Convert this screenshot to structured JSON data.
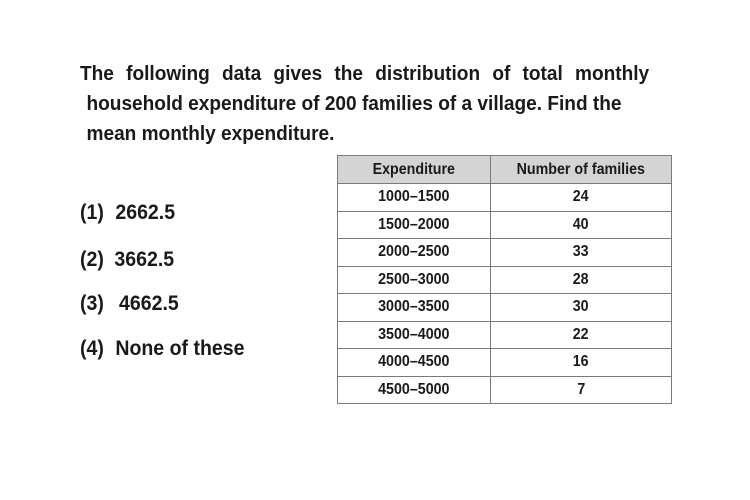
{
  "question": {
    "line1": "The following data gives the distribution of total monthly",
    "line2": "household expenditure of 200 families of a village. Find the",
    "line3": "mean monthly expenditure."
  },
  "options": [
    {
      "num": "(1)",
      "text": "2662.5"
    },
    {
      "num": "(2)",
      "text": "3662.5"
    },
    {
      "num": "(3)",
      "text": "4662.5"
    },
    {
      "num": "(4)",
      "text": "None of these"
    }
  ],
  "table": {
    "headers": [
      "Expenditure",
      "Number of families"
    ],
    "rows": [
      [
        "1000–1500",
        "24"
      ],
      [
        "1500–2000",
        "40"
      ],
      [
        "2000–2500",
        "33"
      ],
      [
        "2500–3000",
        "28"
      ],
      [
        "3000–3500",
        "30"
      ],
      [
        "3500–4000",
        "22"
      ],
      [
        "4000–4500",
        "16"
      ],
      [
        "4500–5000",
        "7"
      ]
    ]
  }
}
